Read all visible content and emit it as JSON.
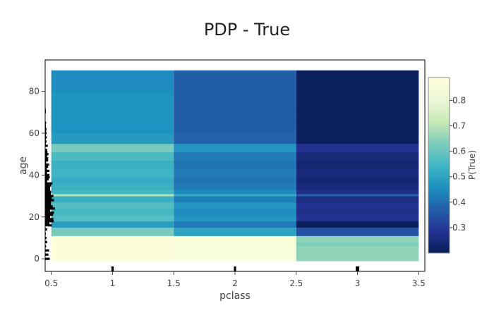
{
  "chart_data": {
    "type": "heatmap",
    "title": "PDP - True",
    "xlabel": "pclass",
    "ylabel": "age",
    "xlim": [
      0.45,
      3.55
    ],
    "ylim": [
      -6,
      95
    ],
    "x_ticks": [
      0.5,
      1,
      1.5,
      2,
      2.5,
      3,
      3.5
    ],
    "x_tick_labels": [
      "0.5",
      "1",
      "1.5",
      "2",
      "2.5",
      "3",
      "3.5"
    ],
    "y_ticks": [
      0,
      20,
      40,
      60,
      80
    ],
    "y_tick_labels": [
      "0",
      "20",
      "40",
      "60",
      "80"
    ],
    "x_bins": [
      0.5,
      1.5,
      2.5,
      3.5
    ],
    "colorbar": {
      "title": "P(True)",
      "range": [
        0.2,
        0.89
      ],
      "ticks": [
        0.3,
        0.4,
        0.5,
        0.6,
        0.7,
        0.8
      ],
      "tick_labels": [
        "0.3",
        "0.4",
        "0.5",
        "0.6",
        "0.7",
        "0.8"
      ],
      "colorscale": [
        "#081d58",
        "#253494",
        "#225ea8",
        "#1d91c0",
        "#41b6c4",
        "#7fcdbb",
        "#c7e9b4",
        "#edf8d9",
        "#ffffd9"
      ]
    },
    "rows": [
      {
        "y0": -1,
        "y1": 3,
        "values": [
          0.88,
          0.86,
          0.65
        ]
      },
      {
        "y0": 3,
        "y1": 6,
        "values": [
          0.88,
          0.86,
          0.65
        ]
      },
      {
        "y0": 6,
        "y1": 8,
        "values": [
          0.88,
          0.86,
          0.63
        ]
      },
      {
        "y0": 8,
        "y1": 11,
        "values": [
          0.88,
          0.86,
          0.65
        ]
      },
      {
        "y0": 11,
        "y1": 15,
        "values": [
          0.62,
          0.5,
          0.35
        ]
      },
      {
        "y0": 15,
        "y1": 18,
        "values": [
          0.49,
          0.42,
          0.21
        ]
      },
      {
        "y0": 18,
        "y1": 21,
        "values": [
          0.57,
          0.47,
          0.28
        ]
      },
      {
        "y0": 21,
        "y1": 24,
        "values": [
          0.55,
          0.45,
          0.27
        ]
      },
      {
        "y0": 24,
        "y1": 27,
        "values": [
          0.57,
          0.47,
          0.28
        ]
      },
      {
        "y0": 27,
        "y1": 30,
        "values": [
          0.53,
          0.43,
          0.26
        ]
      },
      {
        "y0": 30,
        "y1": 31,
        "values": [
          0.7,
          0.52,
          0.38
        ]
      },
      {
        "y0": 31,
        "y1": 33,
        "values": [
          0.55,
          0.45,
          0.27
        ]
      },
      {
        "y0": 33,
        "y1": 36,
        "values": [
          0.53,
          0.42,
          0.25
        ]
      },
      {
        "y0": 36,
        "y1": 39,
        "values": [
          0.52,
          0.41,
          0.24
        ]
      },
      {
        "y0": 39,
        "y1": 43,
        "values": [
          0.54,
          0.42,
          0.25
        ]
      },
      {
        "y0": 43,
        "y1": 47,
        "values": [
          0.53,
          0.41,
          0.24
        ]
      },
      {
        "y0": 47,
        "y1": 51,
        "values": [
          0.56,
          0.42,
          0.25
        ]
      },
      {
        "y0": 51,
        "y1": 55,
        "values": [
          0.62,
          0.47,
          0.28
        ]
      },
      {
        "y0": 55,
        "y1": 60,
        "values": [
          0.48,
          0.38,
          0.21
        ]
      },
      {
        "y0": 60,
        "y1": 65,
        "values": [
          0.46,
          0.37,
          0.21
        ]
      },
      {
        "y0": 65,
        "y1": 70,
        "values": [
          0.46,
          0.37,
          0.21
        ]
      },
      {
        "y0": 70,
        "y1": 80,
        "values": [
          0.46,
          0.37,
          0.21
        ]
      },
      {
        "y0": 80,
        "y1": 90,
        "values": [
          0.45,
          0.37,
          0.21
        ]
      }
    ],
    "x_rug": [
      {
        "x": 1,
        "count": 216
      },
      {
        "x": 2,
        "count": 184
      },
      {
        "x": 3,
        "count": 491
      }
    ],
    "y_hist": [
      {
        "y": 0,
        "count": 14
      },
      {
        "y": 2,
        "count": 10
      },
      {
        "y": 4,
        "count": 12
      },
      {
        "y": 6,
        "count": 3
      },
      {
        "y": 8,
        "count": 6
      },
      {
        "y": 10,
        "count": 4
      },
      {
        "y": 12,
        "count": 2
      },
      {
        "y": 14,
        "count": 6
      },
      {
        "y": 16,
        "count": 20
      },
      {
        "y": 17,
        "count": 13
      },
      {
        "y": 18,
        "count": 26
      },
      {
        "y": 19,
        "count": 25
      },
      {
        "y": 20,
        "count": 15
      },
      {
        "y": 21,
        "count": 24
      },
      {
        "y": 22,
        "count": 27
      },
      {
        "y": 23,
        "count": 15
      },
      {
        "y": 24,
        "count": 30
      },
      {
        "y": 25,
        "count": 23
      },
      {
        "y": 26,
        "count": 18
      },
      {
        "y": 27,
        "count": 18
      },
      {
        "y": 28,
        "count": 27
      },
      {
        "y": 29,
        "count": 20
      },
      {
        "y": 30,
        "count": 25
      },
      {
        "y": 31,
        "count": 17
      },
      {
        "y": 32,
        "count": 18
      },
      {
        "y": 33,
        "count": 15
      },
      {
        "y": 34,
        "count": 15
      },
      {
        "y": 35,
        "count": 18
      },
      {
        "y": 36,
        "count": 22
      },
      {
        "y": 37,
        "count": 6
      },
      {
        "y": 38,
        "count": 11
      },
      {
        "y": 39,
        "count": 14
      },
      {
        "y": 40,
        "count": 13
      },
      {
        "y": 41,
        "count": 6
      },
      {
        "y": 42,
        "count": 13
      },
      {
        "y": 43,
        "count": 5
      },
      {
        "y": 44,
        "count": 9
      },
      {
        "y": 45,
        "count": 12
      },
      {
        "y": 46,
        "count": 3
      },
      {
        "y": 47,
        "count": 9
      },
      {
        "y": 48,
        "count": 9
      },
      {
        "y": 49,
        "count": 6
      },
      {
        "y": 50,
        "count": 10
      },
      {
        "y": 51,
        "count": 7
      },
      {
        "y": 52,
        "count": 6
      },
      {
        "y": 53,
        "count": 1
      },
      {
        "y": 54,
        "count": 8
      },
      {
        "y": 55,
        "count": 2
      },
      {
        "y": 56,
        "count": 4
      },
      {
        "y": 57,
        "count": 2
      },
      {
        "y": 58,
        "count": 5
      },
      {
        "y": 59,
        "count": 2
      },
      {
        "y": 60,
        "count": 4
      },
      {
        "y": 61,
        "count": 3
      },
      {
        "y": 62,
        "count": 4
      },
      {
        "y": 63,
        "count": 2
      },
      {
        "y": 64,
        "count": 2
      },
      {
        "y": 65,
        "count": 3
      },
      {
        "y": 66,
        "count": 1
      },
      {
        "y": 70,
        "count": 2
      },
      {
        "y": 71,
        "count": 2
      },
      {
        "y": 74,
        "count": 1
      },
      {
        "y": 80,
        "count": 1
      }
    ]
  }
}
